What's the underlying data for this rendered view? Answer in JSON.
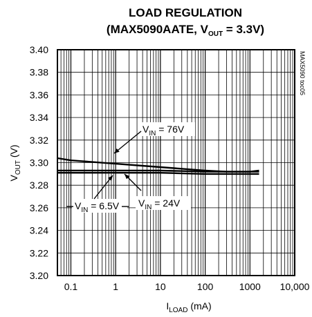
{
  "chart_data": {
    "type": "line",
    "title_line1": "LOAD REGULATION",
    "title_line2_pre": "(MAX5090AATE, V",
    "title_line2_sub": "OUT",
    "title_line2_post": " = 3.3V)",
    "ylabel_main": "V",
    "ylabel_sub": "OUT",
    "ylabel_post": " (V)",
    "xlabel_main": "I",
    "xlabel_sub": "LOAD",
    "xlabel_post": " (mA)",
    "x_scale": "log",
    "xlim": [
      0.05,
      10000
    ],
    "ylim": [
      3.2,
      3.4
    ],
    "x_ticks": [
      {
        "value": 0.1,
        "label": "0.1"
      },
      {
        "value": 1,
        "label": "1"
      },
      {
        "value": 10,
        "label": "10"
      },
      {
        "value": 100,
        "label": "100"
      },
      {
        "value": 1000,
        "label": "1000"
      },
      {
        "value": 10000,
        "label": "10,000"
      }
    ],
    "y_ticks": [
      {
        "value": 3.4,
        "label": "3.40"
      },
      {
        "value": 3.38,
        "label": "3.38"
      },
      {
        "value": 3.36,
        "label": "3.36"
      },
      {
        "value": 3.34,
        "label": "3.34"
      },
      {
        "value": 3.32,
        "label": "3.32"
      },
      {
        "value": 3.3,
        "label": "3.30"
      },
      {
        "value": 3.28,
        "label": "3.28"
      },
      {
        "value": 3.26,
        "label": "3.26"
      },
      {
        "value": 3.24,
        "label": "3.24"
      },
      {
        "value": 3.22,
        "label": "3.22"
      },
      {
        "value": 3.2,
        "label": "3.20"
      }
    ],
    "grid": true,
    "series": [
      {
        "name": "V_IN = 76V",
        "x": [
          0.05,
          0.1,
          1,
          10,
          100,
          300,
          1000,
          1600
        ],
        "y": [
          3.304,
          3.302,
          3.299,
          3.296,
          3.293,
          3.292,
          3.292,
          3.292
        ]
      },
      {
        "name": "V_IN = 24V",
        "x": [
          0.05,
          0.1,
          1,
          10,
          100,
          300,
          1000,
          1600
        ],
        "y": [
          3.293,
          3.293,
          3.293,
          3.293,
          3.292,
          3.292,
          3.292,
          3.293
        ]
      },
      {
        "name": "V_IN = 6.5V",
        "x": [
          0.05,
          0.1,
          1,
          10,
          100,
          300,
          1000,
          1600
        ],
        "y": [
          3.291,
          3.291,
          3.291,
          3.291,
          3.29,
          3.29,
          3.29,
          3.29
        ]
      }
    ],
    "annotations": [
      {
        "pre": "V",
        "sub": "IN",
        "post": " = 76V"
      },
      {
        "pre": "V",
        "sub": "IN",
        "post": " = 24V"
      },
      {
        "pre": "V",
        "sub": "IN",
        "post": " = 6.5V"
      }
    ],
    "side_label": "MAX5090 toc05"
  }
}
